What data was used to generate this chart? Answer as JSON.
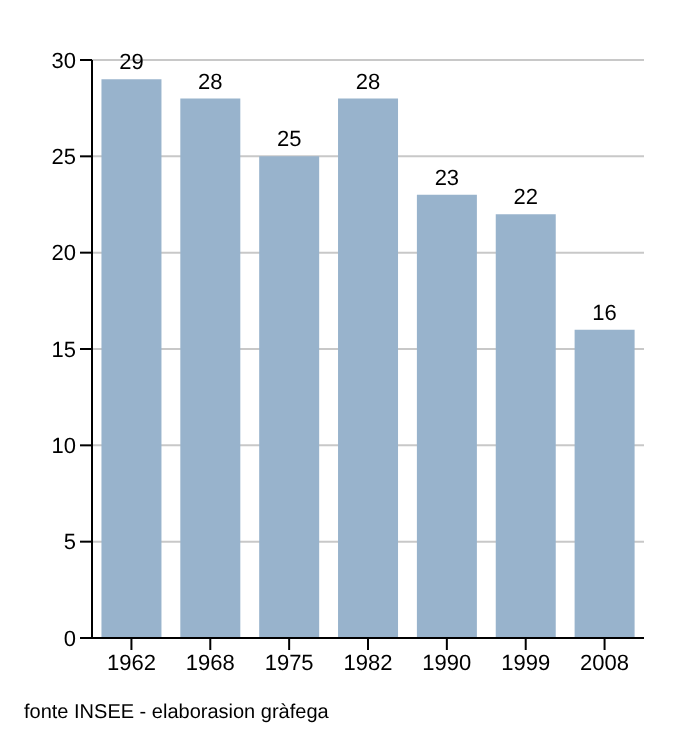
{
  "chart_data": {
    "type": "bar",
    "categories": [
      "1962",
      "1968",
      "1975",
      "1982",
      "1990",
      "1999",
      "2008"
    ],
    "values": [
      29,
      28,
      25,
      28,
      23,
      22,
      16
    ],
    "color": "#98b3cc",
    "ylim": [
      0,
      30
    ],
    "yticks": [
      0,
      5,
      10,
      15,
      20,
      25,
      30
    ],
    "grid": "y",
    "data_labels": true,
    "annotations": [
      "fonte INSEE - elaborasion gràfega"
    ]
  }
}
